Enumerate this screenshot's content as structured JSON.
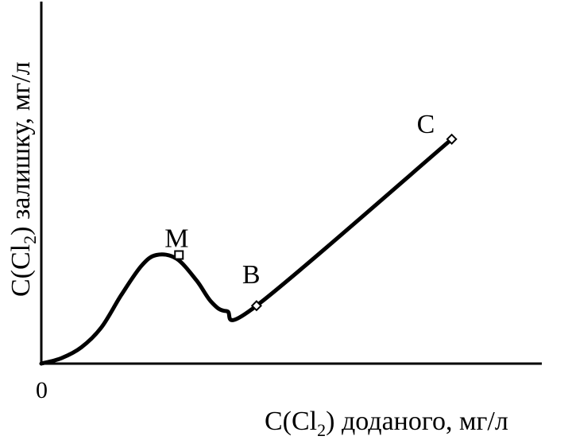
{
  "chart_data": {
    "type": "line",
    "title": "",
    "xlabel": "C(Cl₂) доданого,  мг/л",
    "ylabel": "C(Cl₂) залишку,  мг/л",
    "xlabel_parts": {
      "pre": "C(Cl",
      "sub": "2",
      "post": ") доданого,  мг/л"
    },
    "ylabel_parts": {
      "pre": "C(Cl",
      "sub": "2",
      "post": ") залишку,  мг/л"
    },
    "origin_label": "0",
    "xlim": [
      0,
      100
    ],
    "ylim": [
      0,
      100
    ],
    "grid": false,
    "series": [
      {
        "points": [
          {
            "x": 0,
            "y": 0
          },
          {
            "x": 4,
            "y": 1.5
          },
          {
            "x": 8,
            "y": 4.5
          },
          {
            "x": 12,
            "y": 10
          },
          {
            "x": 16,
            "y": 19
          },
          {
            "x": 20,
            "y": 27
          },
          {
            "x": 23,
            "y": 30
          },
          {
            "x": 27,
            "y": 29
          },
          {
            "x": 31,
            "y": 23
          },
          {
            "x": 34,
            "y": 17
          },
          {
            "x": 37,
            "y": 14.5
          },
          {
            "x": 43,
            "y": 16
          },
          {
            "x": 82,
            "y": 62
          }
        ],
        "color": "#000000"
      }
    ],
    "annotations": [
      {
        "label": "M",
        "x": 27.5,
        "y": 30,
        "marker": "square"
      },
      {
        "label": "B",
        "x": 43,
        "y": 16,
        "marker": "diamond"
      },
      {
        "label": "C",
        "x": 82,
        "y": 62,
        "marker": "diamond"
      }
    ]
  }
}
